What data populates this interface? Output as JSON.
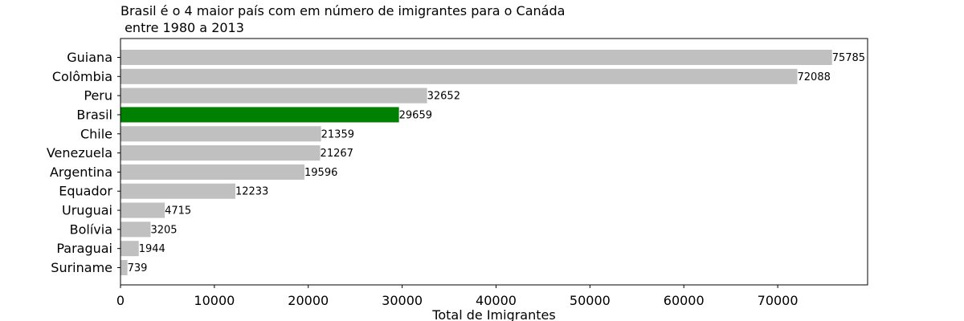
{
  "chart_data": {
    "type": "bar",
    "orientation": "horizontal",
    "title_lines": [
      "Brasil é o 4 maior país com em número de imigrantes para o Canáda",
      " entre 1980 a 2013"
    ],
    "xlabel": "Total de Imigrantes",
    "ylabel": "",
    "categories": [
      "Guiana",
      "Colômbia",
      "Peru",
      "Brasil",
      "Chile",
      "Venezuela",
      "Argentina",
      "Equador",
      "Uruguai",
      "Bolívia",
      "Paraguai",
      "Suriname"
    ],
    "values": [
      75785,
      72088,
      32652,
      29659,
      21359,
      21267,
      19596,
      12233,
      4715,
      3205,
      1944,
      739
    ],
    "value_labels": [
      "75785",
      "72088",
      "32652",
      "29659",
      "21359",
      "21267",
      "19596",
      "12233",
      "4715",
      "3205",
      "1944",
      "739"
    ],
    "highlight_category": "Brasil",
    "xlim": [
      0,
      79574
    ],
    "xticks": [
      0,
      10000,
      20000,
      30000,
      40000,
      50000,
      60000,
      70000
    ],
    "xtick_labels": [
      "0",
      "10000",
      "20000",
      "30000",
      "40000",
      "50000",
      "60000",
      "70000"
    ],
    "grid": false,
    "legend": "none",
    "colors": {
      "default_bar": "#c0c0c0",
      "highlight_bar": "#008000",
      "axis": "#000000",
      "text": "#000000"
    }
  }
}
